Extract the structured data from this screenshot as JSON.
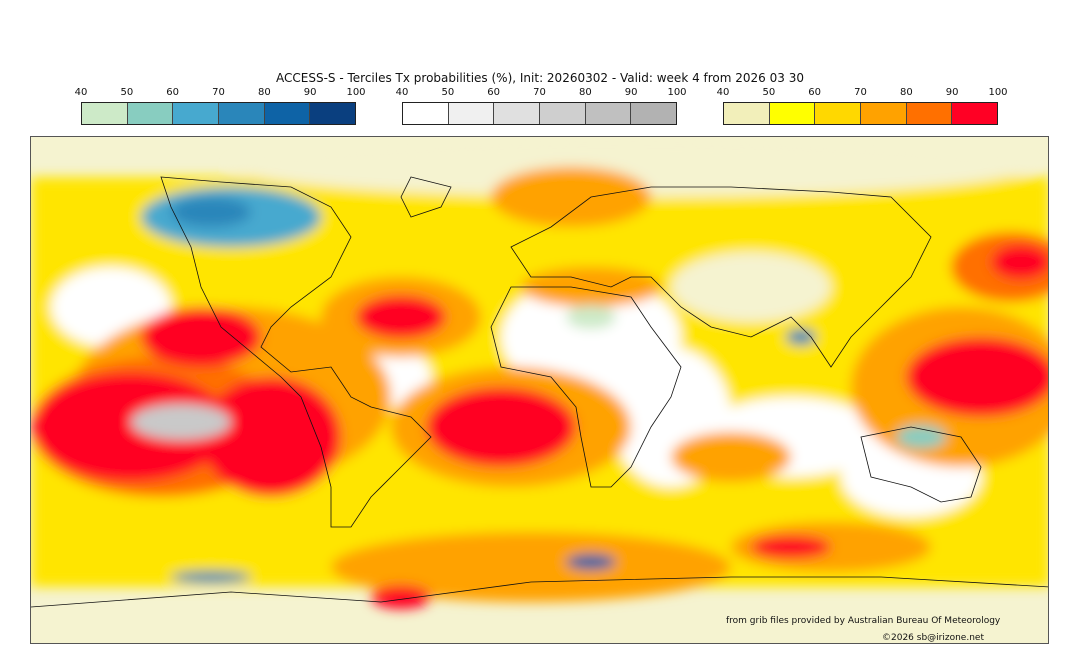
{
  "title": "ACCESS-S - Terciles Tx probabilities (%), Init: 20260302 - Valid: week 4 from 2026 03 30",
  "legends": [
    {
      "name": "below-normal",
      "ticks": [
        "40",
        "50",
        "60",
        "70",
        "80",
        "90",
        "100"
      ],
      "colors": [
        "#cdeac8",
        "#88cdc0",
        "#47a9cf",
        "#2a86ba",
        "#0e63a6",
        "#0a3f7f"
      ]
    },
    {
      "name": "near-normal",
      "ticks": [
        "40",
        "50",
        "60",
        "70",
        "80",
        "90",
        "100"
      ],
      "colors": [
        "#ffffff",
        "#f0f0f0",
        "#e0e0e0",
        "#cfcfcf",
        "#c0c0c0",
        "#b2b2b2"
      ]
    },
    {
      "name": "above-normal",
      "ticks": [
        "40",
        "50",
        "60",
        "70",
        "80",
        "90",
        "100"
      ],
      "colors": [
        "#f2efba",
        "#ffff00",
        "#ffd800",
        "#ffa200",
        "#ff7000",
        "#ff0024"
      ]
    }
  ],
  "credits": {
    "source": "from grib files provided by Australian Bureau Of Meteorology",
    "copyright": "©2026 sb@irizone.net"
  }
}
